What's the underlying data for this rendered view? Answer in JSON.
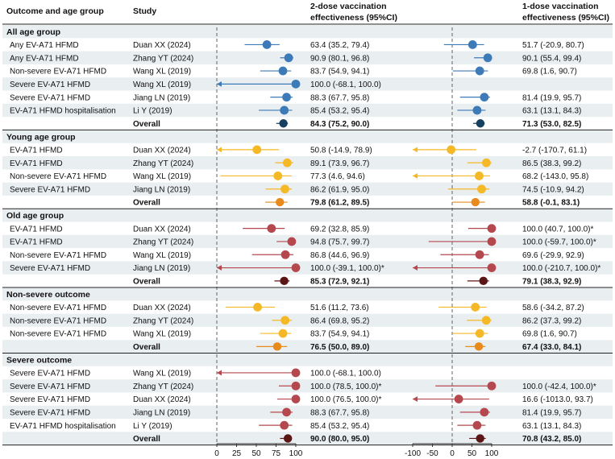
{
  "headers": {
    "outcome": "Outcome and age group",
    "study": "Study",
    "ve2_line1": "2-dose vaccination",
    "ve2_line2": "effectiveness (95%CI)",
    "ve1_line1": "1-dose vaccination",
    "ve1_line2": "effectiveness (95%CI)"
  },
  "colors": {
    "stripe": "#e9eef1",
    "rule": "#222222",
    "refline": "#555555",
    "axis": "#333333"
  },
  "chart_data": {
    "type": "forest",
    "title": "",
    "panels": [
      {
        "name": "2-dose",
        "xlim": [
          0,
          100
        ],
        "ticks": [
          0,
          25,
          50,
          75,
          100
        ],
        "reference": 0
      },
      {
        "name": "1-dose",
        "xlim": [
          -100,
          100
        ],
        "ticks": [
          -100,
          -50,
          0,
          50,
          100
        ],
        "reference": 0
      }
    ],
    "groups": [
      {
        "label": "All age group",
        "color": "#3d7ab8",
        "overall_color": "#17405e",
        "rows": [
          {
            "outcome": "Any EV-A71 HFMD",
            "study": "Duan XX (2024)",
            "ve2": {
              "est": 63.4,
              "lo": 35.2,
              "hi": 79.4,
              "text": "63.4 (35.2, 79.4)"
            },
            "ve1": {
              "est": 51.7,
              "lo": -20.9,
              "hi": 80.7,
              "text": "51.7 (-20.9, 80.7)"
            }
          },
          {
            "outcome": "Any EV-A71 HFMD",
            "study": "Zhang YT (2024)",
            "ve2": {
              "est": 90.9,
              "lo": 80.1,
              "hi": 96.8,
              "text": "90.9 (80.1, 96.8)"
            },
            "ve1": {
              "est": 90.1,
              "lo": 55.4,
              "hi": 99.4,
              "text": "90.1 (55.4, 99.4)"
            }
          },
          {
            "outcome": "Non-severe EV-A71 HFMD",
            "study": "Wang XL (2019)",
            "ve2": {
              "est": 83.7,
              "lo": 54.9,
              "hi": 94.1,
              "text": "83.7 (54.9, 94.1)"
            },
            "ve1": {
              "est": 69.8,
              "lo": 1.6,
              "hi": 90.7,
              "text": "69.8 (1.6, 90.7)"
            }
          },
          {
            "outcome": "Severe EV-A71 HFMD",
            "study": "Wang XL (2019)",
            "ve2": {
              "est": 100.0,
              "lo": -68.1,
              "hi": 100.0,
              "text": "100.0 (-68.1, 100.0)"
            },
            "ve1": null
          },
          {
            "outcome": "Severe EV-A71 HFMD",
            "study": "Jiang LN (2019)",
            "ve2": {
              "est": 88.3,
              "lo": 67.7,
              "hi": 95.8,
              "text": "88.3 (67.7, 95.8)"
            },
            "ve1": {
              "est": 81.4,
              "lo": 19.9,
              "hi": 95.7,
              "text": "81.4 (19.9, 95.7)"
            }
          },
          {
            "outcome": "EV-A71 HFMD hospitalisation",
            "study": "Li Y (2019)",
            "ve2": {
              "est": 85.4,
              "lo": 53.2,
              "hi": 95.4,
              "text": "85.4 (53.2, 95.4)"
            },
            "ve1": {
              "est": 63.1,
              "lo": 13.1,
              "hi": 84.3,
              "text": "63.1 (13.1, 84.3)"
            }
          }
        ],
        "overall": {
          "label": "Overall",
          "ve2": {
            "est": 84.3,
            "lo": 75.2,
            "hi": 90.0,
            "text": "84.3 (75.2, 90.0)"
          },
          "ve1": {
            "est": 71.3,
            "lo": 53.0,
            "hi": 82.5,
            "text": "71.3 (53.0, 82.5)"
          }
        }
      },
      {
        "label": "Young age group",
        "color": "#f5b827",
        "overall_color": "#e88b1c",
        "rows": [
          {
            "outcome": "EV-A71 HFMD",
            "study": "Duan XX (2024)",
            "ve2": {
              "est": 50.8,
              "lo": -14.9,
              "hi": 78.9,
              "text": "50.8 (-14.9, 78.9)"
            },
            "ve1": {
              "est": -2.7,
              "lo": -170.7,
              "hi": 61.1,
              "text": "-2.7 (-170.7, 61.1)"
            }
          },
          {
            "outcome": "EV-A71 HFMD",
            "study": "Zhang YT (2024)",
            "ve2": {
              "est": 89.1,
              "lo": 73.9,
              "hi": 96.7,
              "text": "89.1 (73.9, 96.7)"
            },
            "ve1": {
              "est": 86.5,
              "lo": 38.3,
              "hi": 99.2,
              "text": "86.5 (38.3, 99.2)"
            }
          },
          {
            "outcome": "Non-severe EV-A71 HFMD",
            "study": "Wang XL (2019)",
            "ve2": {
              "est": 77.3,
              "lo": 4.6,
              "hi": 94.6,
              "text": "77.3 (4.6, 94.6)"
            },
            "ve1": {
              "est": 68.2,
              "lo": -143.0,
              "hi": 95.8,
              "text": "68.2 (-143.0, 95.8)"
            }
          },
          {
            "outcome": "Severe EV-A71 HFMD",
            "study": "Jiang LN (2019)",
            "ve2": {
              "est": 86.2,
              "lo": 61.9,
              "hi": 95.0,
              "text": "86.2 (61.9, 95.0)"
            },
            "ve1": {
              "est": 74.5,
              "lo": -10.9,
              "hi": 94.2,
              "text": "74.5 (-10.9, 94.2)"
            }
          }
        ],
        "overall": {
          "label": "Overall",
          "ve2": {
            "est": 79.8,
            "lo": 61.2,
            "hi": 89.5,
            "text": "79.8 (61.2, 89.5)"
          },
          "ve1": {
            "est": 58.8,
            "lo": -0.1,
            "hi": 83.1,
            "text": "58.8 (-0.1, 83.1)"
          }
        }
      },
      {
        "label": "Old age group",
        "color": "#b5484f",
        "overall_color": "#5c1515",
        "rows": [
          {
            "outcome": "EV-A71 HFMD",
            "study": "Duan XX (2024)",
            "ve2": {
              "est": 69.2,
              "lo": 32.8,
              "hi": 85.9,
              "text": "69.2 (32.8, 85.9)"
            },
            "ve1": {
              "est": 100.0,
              "lo": 40.7,
              "hi": 100.0,
              "text": "100.0 (40.7, 100.0)*"
            }
          },
          {
            "outcome": "EV-A71 HFMD",
            "study": "Zhang YT (2024)",
            "ve2": {
              "est": 94.8,
              "lo": 75.7,
              "hi": 99.7,
              "text": "94.8 (75.7, 99.7)"
            },
            "ve1": {
              "est": 100.0,
              "lo": -59.7,
              "hi": 100.0,
              "text": "100.0 (-59.7, 100.0)*"
            }
          },
          {
            "outcome": "Non-severe EV-A71 HFMD",
            "study": "Wang XL (2019)",
            "ve2": {
              "est": 86.8,
              "lo": 44.6,
              "hi": 96.9,
              "text": "86.8 (44.6, 96.9)"
            },
            "ve1": {
              "est": 69.6,
              "lo": -29.9,
              "hi": 92.9,
              "text": "69.6 (-29.9, 92.9)"
            }
          },
          {
            "outcome": "Severe EV-A71 HFMD",
            "study": "Jiang LN (2019)",
            "ve2": {
              "est": 100.0,
              "lo": -39.1,
              "hi": 100.0,
              "text": "100.0 (-39.1, 100.0)*"
            },
            "ve1": {
              "est": 100.0,
              "lo": -210.7,
              "hi": 100.0,
              "text": "100.0 (-210.7, 100.0)*"
            }
          }
        ],
        "overall": {
          "label": "Overall",
          "ve2": {
            "est": 85.3,
            "lo": 72.9,
            "hi": 92.1,
            "text": "85.3 (72.9, 92.1)"
          },
          "ve1": {
            "est": 79.1,
            "lo": 38.3,
            "hi": 92.9,
            "text": "79.1 (38.3, 92.9)"
          }
        }
      },
      {
        "label": "Non-severe outcome",
        "color": "#f5b827",
        "overall_color": "#e88b1c",
        "rows": [
          {
            "outcome": "Non-severe EV-A71 HFMD",
            "study": "Duan XX (2024)",
            "ve2": {
              "est": 51.6,
              "lo": 11.2,
              "hi": 73.6,
              "text": "51.6 (11.2, 73.6)"
            },
            "ve1": {
              "est": 58.6,
              "lo": -34.2,
              "hi": 87.2,
              "text": "58.6 (-34.2, 87.2)"
            }
          },
          {
            "outcome": "Non-severe EV-A71 HFMD",
            "study": "Zhang YT (2024)",
            "ve2": {
              "est": 86.4,
              "lo": 69.8,
              "hi": 95.2,
              "text": "86.4 (69.8, 95.2)"
            },
            "ve1": {
              "est": 86.2,
              "lo": 37.3,
              "hi": 99.2,
              "text": "86.2 (37.3, 99.2)"
            }
          },
          {
            "outcome": "Non-severe EV-A71 HFMD",
            "study": "Wang XL (2019)",
            "ve2": {
              "est": 83.7,
              "lo": 54.9,
              "hi": 94.1,
              "text": "83.7 (54.9, 94.1)"
            },
            "ve1": {
              "est": 69.8,
              "lo": 1.6,
              "hi": 90.7,
              "text": "69.8 (1.6, 90.7)"
            }
          }
        ],
        "overall": {
          "label": "Overall",
          "ve2": {
            "est": 76.5,
            "lo": 50.0,
            "hi": 89.0,
            "text": "76.5 (50.0, 89.0)"
          },
          "ve1": {
            "est": 67.4,
            "lo": 33.0,
            "hi": 84.1,
            "text": "67.4 (33.0, 84.1)"
          }
        }
      },
      {
        "label": "Severe outcome",
        "color": "#b5484f",
        "overall_color": "#5c1515",
        "rows": [
          {
            "outcome": "Severe EV-A71 HFMD",
            "study": "Wang XL (2019)",
            "ve2": {
              "est": 100.0,
              "lo": -68.1,
              "hi": 100.0,
              "text": "100.0 (-68.1, 100.0)"
            },
            "ve1": null
          },
          {
            "outcome": "Severe EV-A71 HFMD",
            "study": "Zhang YT (2024)",
            "ve2": {
              "est": 100.0,
              "lo": 78.5,
              "hi": 100.0,
              "text": "100.0 (78.5, 100.0)*"
            },
            "ve1": {
              "est": 100.0,
              "lo": -42.4,
              "hi": 100.0,
              "text": "100.0 (-42.4, 100.0)*"
            }
          },
          {
            "outcome": "Severe EV-A71 HFMD",
            "study": "Duan XX (2024)",
            "ve2": {
              "est": 100.0,
              "lo": 76.5,
              "hi": 100.0,
              "text": "100.0 (76.5, 100.0)*"
            },
            "ve1": {
              "est": 16.6,
              "lo": -1013.0,
              "hi": 93.7,
              "text": "16.6 (-1013.0, 93.7)"
            }
          },
          {
            "outcome": "Severe EV-A71 HFMD",
            "study": "Jiang LN (2019)",
            "ve2": {
              "est": 88.3,
              "lo": 67.7,
              "hi": 95.8,
              "text": "88.3 (67.7, 95.8)"
            },
            "ve1": {
              "est": 81.4,
              "lo": 19.9,
              "hi": 95.7,
              "text": "81.4 (19.9, 95.7)"
            }
          },
          {
            "outcome": "EV-A71 HFMD hospitalisation",
            "study": "Li Y (2019)",
            "ve2": {
              "est": 85.4,
              "lo": 53.2,
              "hi": 95.4,
              "text": "85.4 (53.2, 95.4)"
            },
            "ve1": {
              "est": 63.1,
              "lo": 13.1,
              "hi": 84.3,
              "text": "63.1 (13.1, 84.3)"
            }
          }
        ],
        "overall": {
          "label": "Overall",
          "ve2": {
            "est": 90.0,
            "lo": 80.0,
            "hi": 95.0,
            "text": "90.0 (80.0, 95.0)"
          },
          "ve1": {
            "est": 70.8,
            "lo": 43.2,
            "hi": 85.0,
            "text": "70.8 (43.2, 85.0)"
          }
        }
      }
    ]
  }
}
